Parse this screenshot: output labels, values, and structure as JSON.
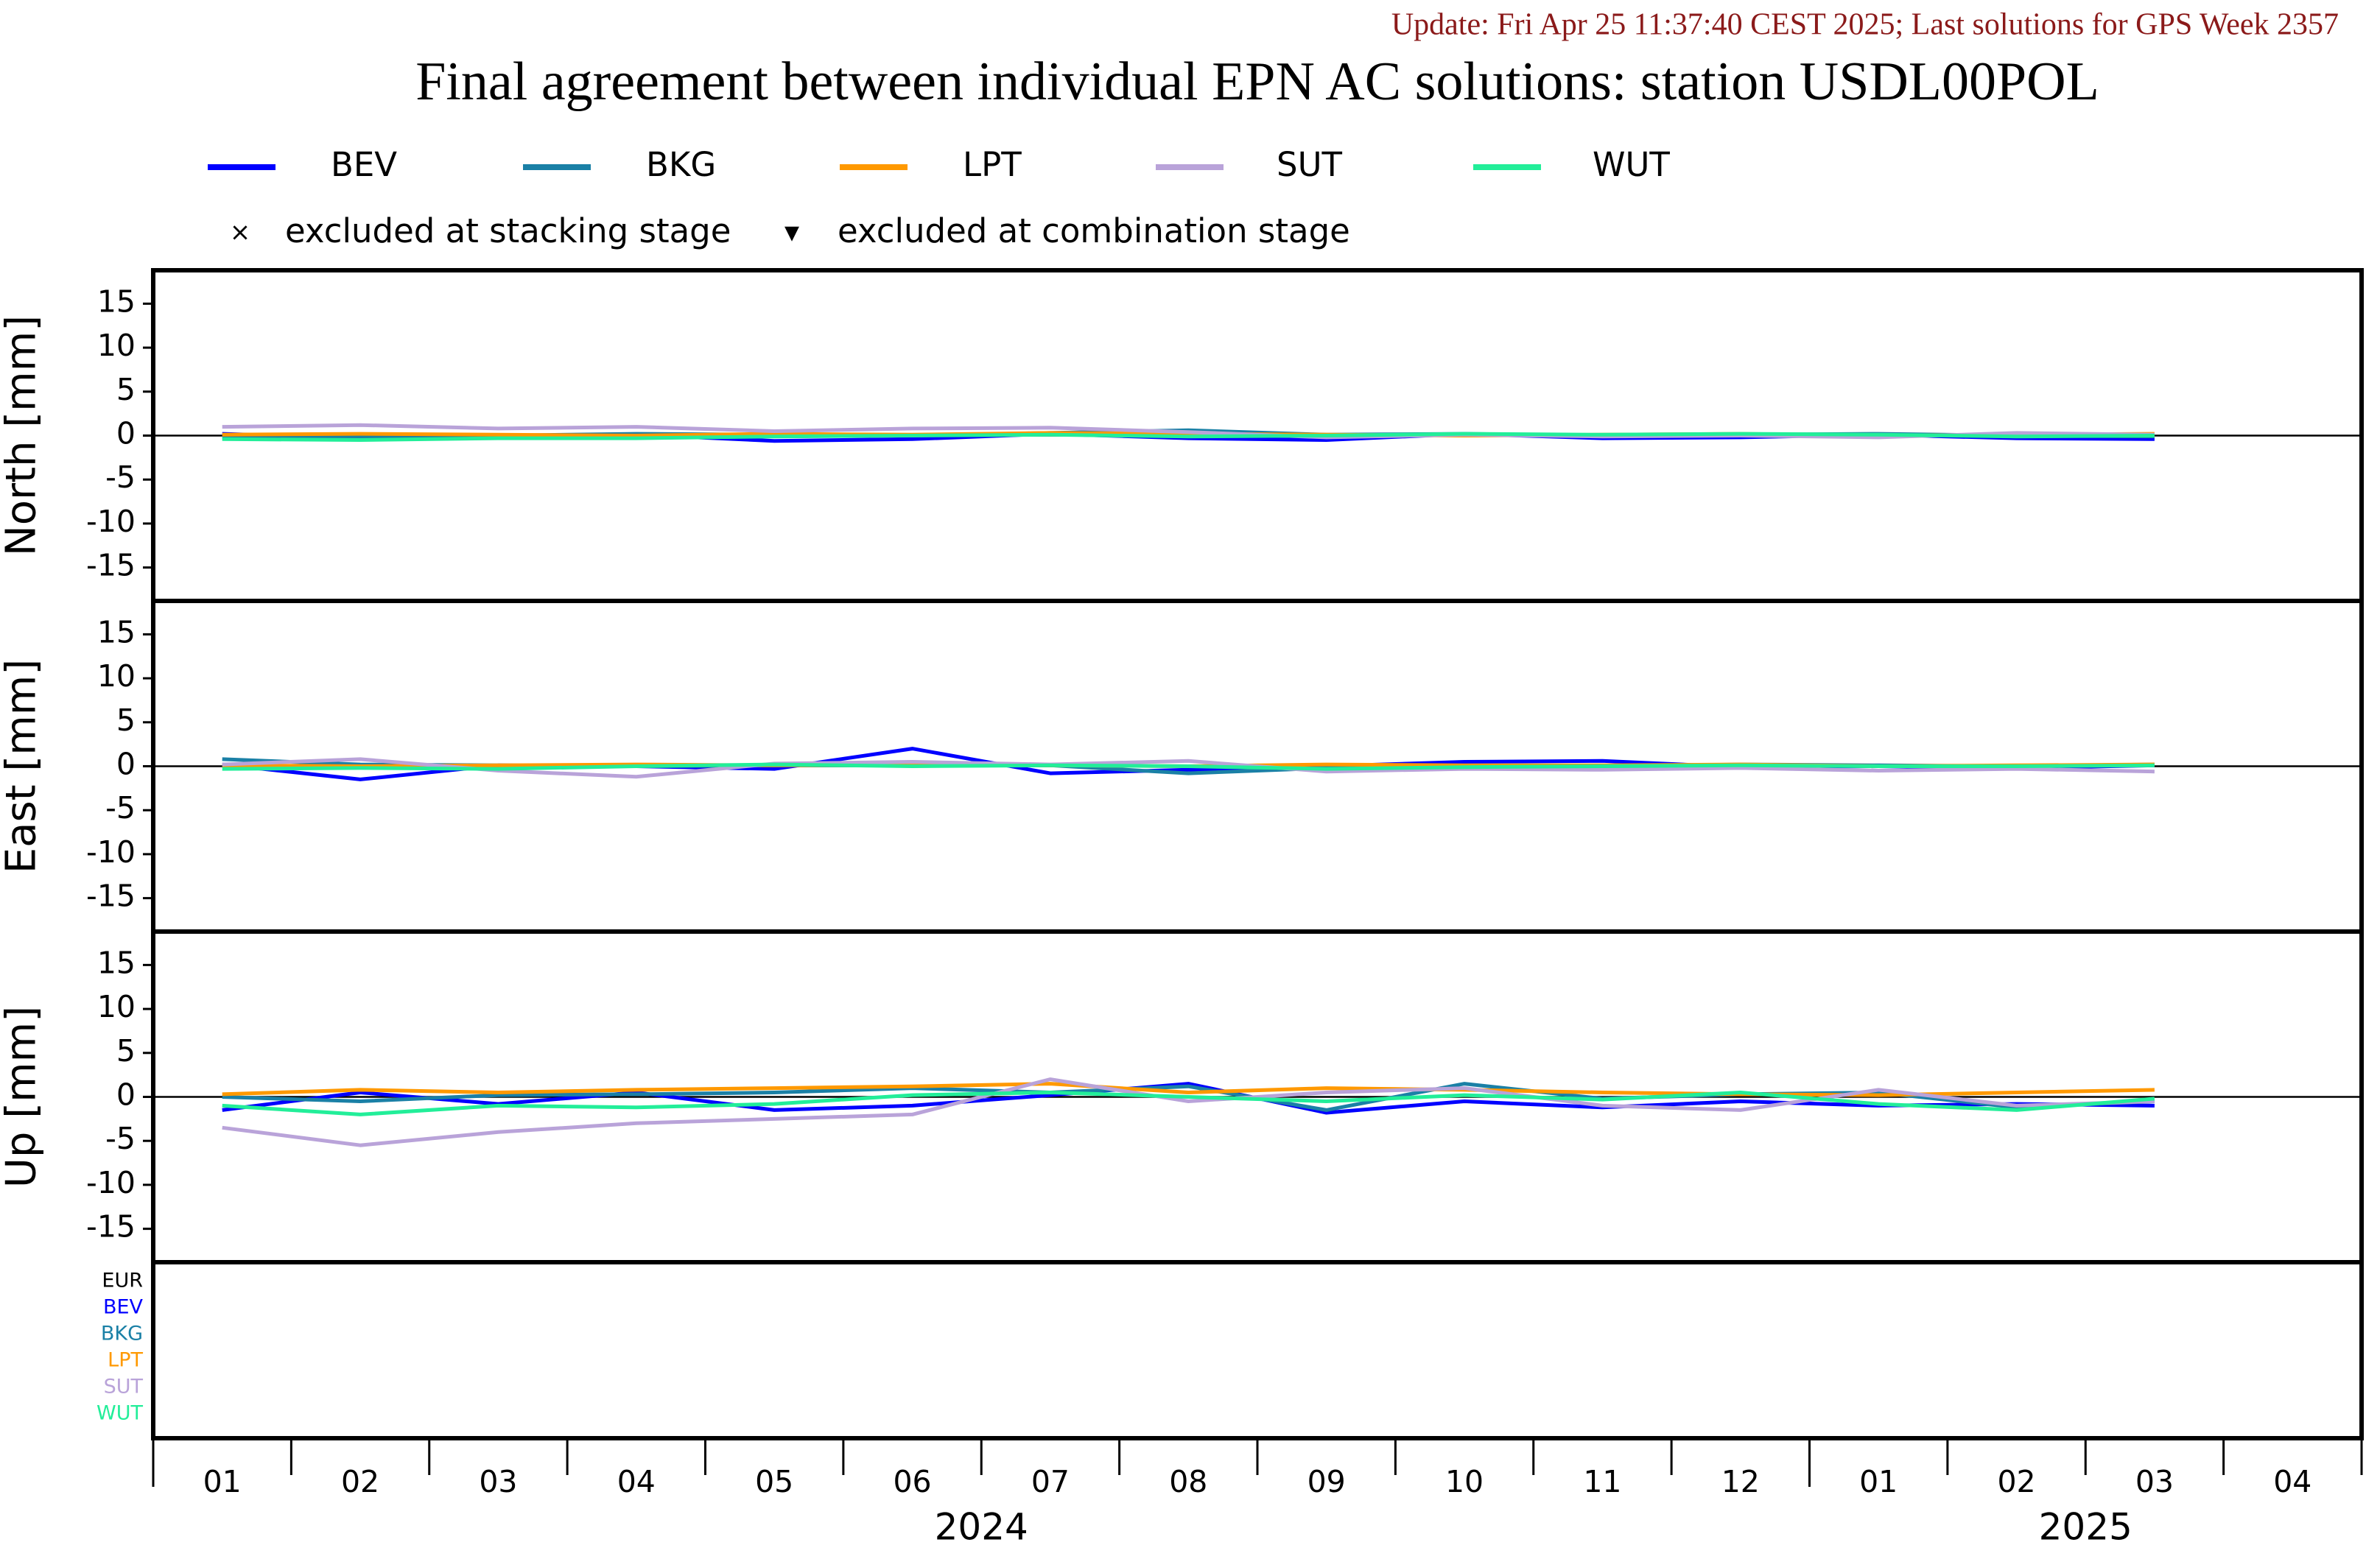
{
  "update": "Update: Fri Apr 25 11:37:40 CEST 2025; Last solutions for GPS Week 2357",
  "chart_data": {
    "type": "line",
    "title": "Final agreement between individual EPN AC solutions: station USDL00POL",
    "series": [
      {
        "name": "BEV",
        "color": "#0000ff"
      },
      {
        "name": "BKG",
        "color": "#1a80a6"
      },
      {
        "name": "LPT",
        "color": "#ff9900"
      },
      {
        "name": "SUT",
        "color": "#b9a3d9"
      },
      {
        "name": "WUT",
        "color": "#22ee99"
      }
    ],
    "markers": [
      "excluded at stacking stage",
      "excluded at combination stage"
    ],
    "reference_label": "EUR",
    "x": [
      "2024-01",
      "2024-02",
      "2024-03",
      "2024-04",
      "2024-05",
      "2024-06",
      "2024-07",
      "2024-08",
      "2024-09",
      "2024-10",
      "2024-11",
      "2024-12",
      "2025-01",
      "2025-02",
      "2025-03"
    ],
    "xlim": [
      "2024-01",
      "2025-04"
    ],
    "xticks": [
      {
        "value": "2024-01",
        "label": "01"
      },
      {
        "value": "2024-02",
        "label": "02"
      },
      {
        "value": "2024-03",
        "label": "03"
      },
      {
        "value": "2024-04",
        "label": "04"
      },
      {
        "value": "2024-05",
        "label": "05"
      },
      {
        "value": "2024-06",
        "label": "06"
      },
      {
        "value": "2024-07",
        "label": "07"
      },
      {
        "value": "2024-08",
        "label": "08"
      },
      {
        "value": "2024-09",
        "label": "09"
      },
      {
        "value": "2024-10",
        "label": "10"
      },
      {
        "value": "2024-11",
        "label": "11"
      },
      {
        "value": "2024-12",
        "label": "12"
      },
      {
        "value": "2025-01",
        "label": "01"
      },
      {
        "value": "2025-02",
        "label": "02"
      },
      {
        "value": "2025-03",
        "label": "03"
      },
      {
        "value": "2025-04",
        "label": "04"
      }
    ],
    "year_labels": [
      2024,
      2025
    ],
    "panels": [
      {
        "ylabel": "North [mm]",
        "ylim": [
          -18.8,
          18.8
        ],
        "yticks": [
          15,
          10,
          5,
          0,
          -5,
          -10,
          -15
        ],
        "values": [
          [
            0.2,
            -0.3,
            -0.2,
            0.1,
            -0.6,
            -0.4,
            0.2,
            -0.3,
            -0.5,
            0.2,
            -0.3,
            -0.2,
            0.1,
            -0.3,
            -0.4
          ],
          [
            -0.2,
            -0.1,
            0.0,
            0.2,
            0.1,
            0.0,
            0.3,
            0.6,
            0.1,
            0.2,
            0.0,
            0.1,
            0.2,
            0.0,
            -0.1
          ],
          [
            0.1,
            0.2,
            0.1,
            0.0,
            0.2,
            0.1,
            0.3,
            0.2,
            0.1,
            0.0,
            0.1,
            0.2,
            0.0,
            0.1,
            0.2
          ],
          [
            1.0,
            1.2,
            0.8,
            1.0,
            0.5,
            0.8,
            0.9,
            0.4,
            -0.2,
            0.1,
            -0.1,
            0.0,
            -0.2,
            0.3,
            0.1
          ],
          [
            -0.4,
            -0.5,
            -0.3,
            -0.3,
            -0.1,
            0.0,
            0.1,
            -0.1,
            0.0,
            0.2,
            0.1,
            0.2,
            0.1,
            -0.1,
            0.0
          ]
        ]
      },
      {
        "ylabel": "East [mm]",
        "ylim": [
          -18.8,
          18.8
        ],
        "yticks": [
          15,
          10,
          5,
          0,
          -5,
          -10,
          -15
        ],
        "values": [
          [
            0.2,
            -1.5,
            0.1,
            0.0,
            -0.3,
            2.0,
            -0.8,
            -0.4,
            0.0,
            0.5,
            0.6,
            -0.1,
            0.0,
            -0.2,
            0.1
          ],
          [
            0.8,
            0.2,
            0.1,
            0.0,
            0.1,
            0.2,
            0.1,
            -0.8,
            -0.2,
            0.0,
            0.0,
            0.2,
            0.1,
            0.0,
            0.2
          ],
          [
            0.1,
            0.0,
            0.1,
            0.2,
            0.1,
            0.2,
            0.1,
            0.0,
            0.2,
            0.1,
            0.1,
            0.2,
            0.0,
            0.1,
            0.2
          ],
          [
            0.2,
            0.8,
            -0.5,
            -1.2,
            0.3,
            0.5,
            0.2,
            0.6,
            -0.6,
            -0.3,
            -0.4,
            -0.2,
            -0.5,
            -0.3,
            -0.6
          ],
          [
            -0.3,
            -0.2,
            -0.3,
            0.0,
            0.2,
            0.0,
            0.1,
            0.0,
            -0.3,
            -0.1,
            0.0,
            0.1,
            0.0,
            0.0,
            0.1
          ]
        ]
      },
      {
        "ylabel": "Up [mm]",
        "ylim": [
          -18.8,
          18.8
        ],
        "yticks": [
          15,
          10,
          5,
          0,
          -5,
          -10,
          -15
        ],
        "values": [
          [
            -1.5,
            0.5,
            -0.8,
            0.5,
            -1.5,
            -1.0,
            0.2,
            1.5,
            -1.8,
            -0.5,
            -1.2,
            -0.5,
            -1.0,
            -0.8,
            -1.0
          ],
          [
            0.0,
            -0.5,
            0.2,
            0.3,
            0.5,
            1.0,
            0.5,
            1.2,
            -1.5,
            1.5,
            -0.2,
            0.3,
            0.5,
            -1.2,
            -0.5
          ],
          [
            0.3,
            0.8,
            0.5,
            0.8,
            1.0,
            1.2,
            1.5,
            0.5,
            1.0,
            0.8,
            0.5,
            0.3,
            0.2,
            0.5,
            0.8
          ],
          [
            -3.5,
            -5.5,
            -4.0,
            -3.0,
            -2.5,
            -2.0,
            2.0,
            -0.5,
            0.5,
            1.0,
            -1.0,
            -1.5,
            0.8,
            -1.0,
            -0.5
          ],
          [
            -1.0,
            -2.0,
            -1.0,
            -1.2,
            -0.8,
            0.2,
            0.5,
            0.0,
            -0.5,
            0.2,
            -0.3,
            0.5,
            -0.8,
            -1.5,
            -0.2
          ]
        ]
      }
    ]
  }
}
